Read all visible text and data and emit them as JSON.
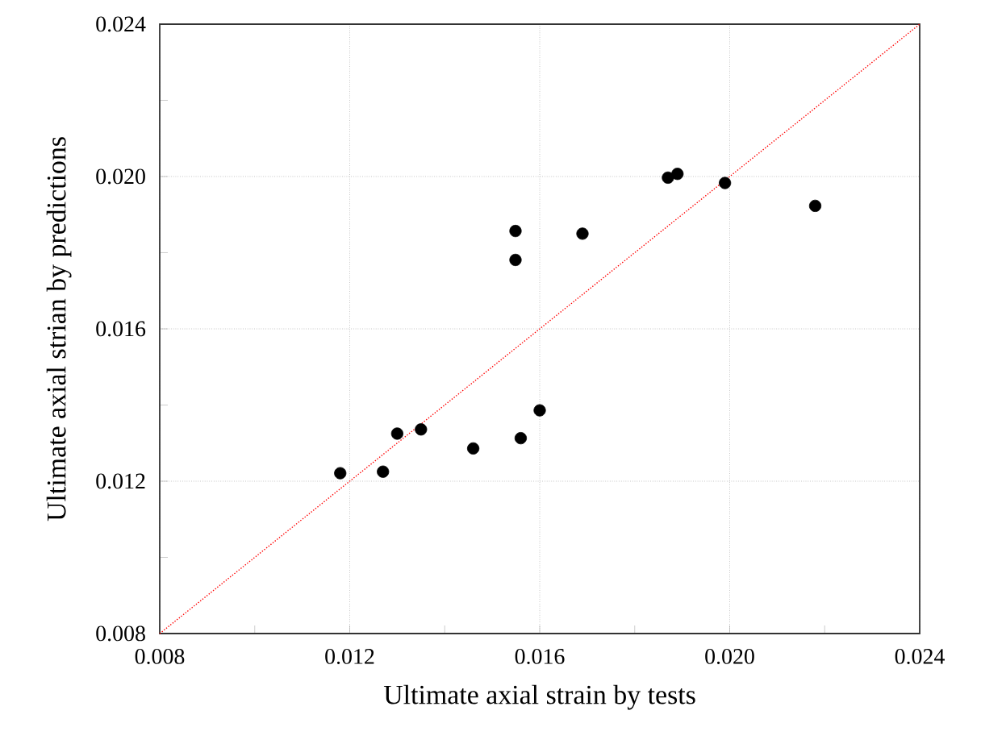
{
  "chart_data": {
    "type": "scatter",
    "xlabel": "Ultimate axial strain by tests",
    "ylabel": "Ultimate axial strian by predictions",
    "xlim": [
      0.008,
      0.024
    ],
    "ylim": [
      0.008,
      0.024
    ],
    "xticks": [
      0.008,
      {
        "value": 0.01,
        "label": null
      },
      0.012,
      {
        "value": 0.014,
        "label": null
      },
      0.016,
      {
        "value": 0.018,
        "label": null
      },
      {
        "value": 0.02,
        "label": "0.020"
      },
      {
        "value": 0.022,
        "label": null
      },
      0.024
    ],
    "yticks": [
      0.008,
      {
        "value": 0.01,
        "label": null
      },
      0.012,
      {
        "value": 0.014,
        "label": null
      },
      0.016,
      {
        "value": 0.018,
        "label": null
      },
      {
        "value": 0.02,
        "label": "0.020"
      },
      {
        "value": 0.022,
        "label": null
      },
      0.024
    ],
    "grid": true,
    "series": [
      {
        "color": "#000000",
        "marker": "circle",
        "x": [
          0.0118,
          0.0127,
          0.013,
          0.0135,
          0.0146,
          0.01549,
          0.01549,
          0.0156,
          0.016,
          0.0169,
          0.0187,
          0.0189,
          0.0199,
          0.0218
        ],
        "values": [
          0.01221,
          0.01225,
          0.01325,
          0.01336,
          0.01286,
          0.01857,
          0.01781,
          0.01313,
          0.01386,
          0.0185,
          0.01997,
          0.02007,
          0.01983,
          0.01923
        ]
      },
      {
        "type": "line",
        "color": "#ff0000",
        "line_style": "dotted",
        "marker": "none",
        "x": [
          0.008,
          0.024
        ],
        "values": [
          0.008,
          0.024
        ]
      }
    ]
  }
}
